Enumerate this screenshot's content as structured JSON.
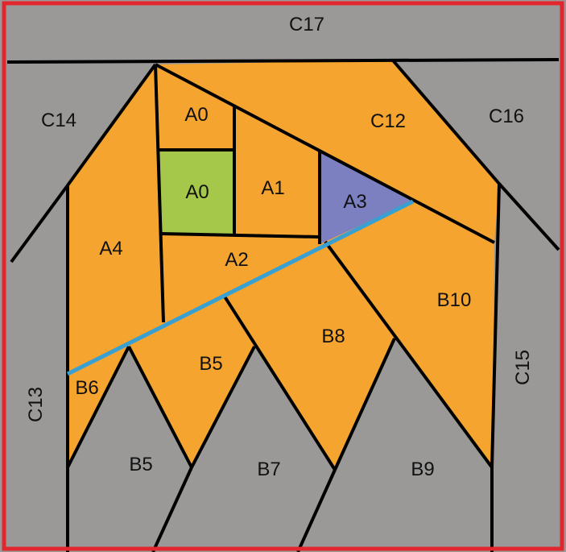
{
  "colors": {
    "frame": "#e3262d",
    "gray": "#9a9998",
    "orange": "#f5a52f",
    "green": "#a6c84a",
    "purple": "#7c7fc0",
    "seam": "#3aa0d2",
    "outline": "#000000"
  },
  "pieces": {
    "c17": "C17",
    "c14": "C14",
    "c16": "C16",
    "c12": "C12",
    "c13": "C13",
    "c15": "C15",
    "a0_top": "A0",
    "a0_green": "A0",
    "a1": "A1",
    "a2": "A2",
    "a3": "A3",
    "a4": "A4",
    "b10": "B10",
    "b8": "B8",
    "b5_upper": "B5",
    "b6": "B6",
    "b5_lower": "B5",
    "b7": "B7",
    "b9": "B9"
  }
}
